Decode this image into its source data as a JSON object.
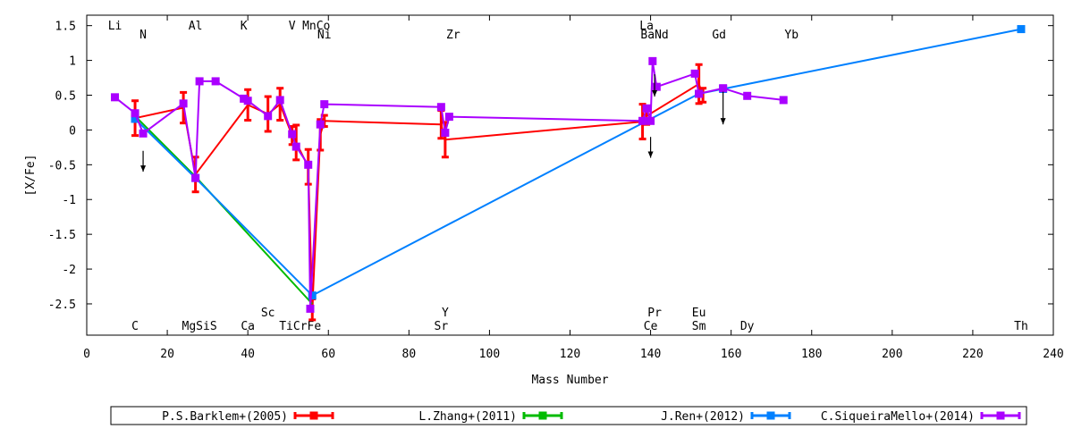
{
  "chart_data": {
    "type": "line",
    "title": "",
    "xlabel": "Mass Number",
    "ylabel": "[X/Fe]",
    "xlim": [
      0,
      240
    ],
    "ylim": [
      -2.95,
      1.65
    ],
    "xticks": [
      0,
      20,
      40,
      60,
      80,
      100,
      120,
      140,
      160,
      180,
      200,
      220,
      240
    ],
    "yticks": [
      1.5,
      1,
      0.5,
      0,
      -0.5,
      -1,
      -1.5,
      -2,
      -2.5
    ],
    "ytick_labels": [
      "1.5",
      "1",
      "0.5",
      "0",
      "-0.5",
      "-1",
      "-1.5",
      "-2",
      "-2.5"
    ],
    "grid": false,
    "legend_position": "bottom",
    "element_labels": [
      {
        "text": "Li",
        "x": 7,
        "row": "top1"
      },
      {
        "text": "N",
        "x": 14,
        "row": "top2"
      },
      {
        "text": "Al",
        "x": 27,
        "row": "top1"
      },
      {
        "text": "K",
        "x": 39,
        "row": "top1"
      },
      {
        "text": "V",
        "x": 51,
        "row": "top1"
      },
      {
        "text": "MnCo",
        "x": 57,
        "row": "top1"
      },
      {
        "text": "Ni",
        "x": 59,
        "row": "top2"
      },
      {
        "text": "Zr",
        "x": 91,
        "row": "top2"
      },
      {
        "text": "La",
        "x": 139,
        "row": "top1"
      },
      {
        "text": "BaNd",
        "x": 141,
        "row": "top2"
      },
      {
        "text": "Gd",
        "x": 157,
        "row": "top2"
      },
      {
        "text": "Yb",
        "x": 175,
        "row": "top2"
      },
      {
        "text": "Sc",
        "x": 45,
        "row": "bot1"
      },
      {
        "text": "Y",
        "x": 89,
        "row": "bot1"
      },
      {
        "text": "Pr",
        "x": 141,
        "row": "bot1"
      },
      {
        "text": "Eu",
        "x": 152,
        "row": "bot1"
      },
      {
        "text": "C",
        "x": 12,
        "row": "bot2"
      },
      {
        "text": "MgSiS",
        "x": 28,
        "row": "bot2"
      },
      {
        "text": "Ca",
        "x": 40,
        "row": "bot2"
      },
      {
        "text": "TiCrFe",
        "x": 53,
        "row": "bot2"
      },
      {
        "text": "Sr",
        "x": 88,
        "row": "bot2"
      },
      {
        "text": "Ce",
        "x": 140,
        "row": "bot2"
      },
      {
        "text": "Sm",
        "x": 152,
        "row": "bot2"
      },
      {
        "text": "Dy",
        "x": 164,
        "row": "bot2"
      },
      {
        "text": "Th",
        "x": 232,
        "row": "bot2"
      }
    ],
    "series": [
      {
        "name": "P.S.Barklem+(2005)",
        "color": "#ff0000",
        "marker": "errorbar",
        "points": [
          {
            "x": 12,
            "y": 0.17,
            "err": 0.25
          },
          {
            "x": 24,
            "y": 0.32,
            "err": 0.22
          },
          {
            "x": 27,
            "y": -0.64,
            "err": 0.25
          },
          {
            "x": 40,
            "y": 0.36,
            "err": 0.22
          },
          {
            "x": 45,
            "y": 0.23,
            "err": 0.25
          },
          {
            "x": 48,
            "y": 0.37,
            "err": 0.23
          },
          {
            "x": 51,
            "y": -0.08,
            "err": 0.13
          },
          {
            "x": 52,
            "y": -0.18,
            "err": 0.25
          },
          {
            "x": 55,
            "y": -0.53,
            "err": 0.25
          },
          {
            "x": 56,
            "y": -2.58,
            "err": 0.15
          },
          {
            "x": 58,
            "y": -0.07,
            "err": 0.22
          },
          {
            "x": 59,
            "y": 0.13,
            "err": 0.08
          },
          {
            "x": 88,
            "y": 0.08,
            "err": 0.2
          },
          {
            "x": 89,
            "y": -0.14,
            "err": 0.25
          },
          {
            "x": 138,
            "y": 0.12,
            "err": 0.25
          },
          {
            "x": 139,
            "y": 0.2,
            "err": 0.12
          },
          {
            "x": 152,
            "y": 0.66,
            "err": 0.28
          },
          {
            "x": 153,
            "y": 0.5,
            "err": 0.1
          }
        ]
      },
      {
        "name": "L.Zhang+(2011)",
        "color": "#00bb00",
        "marker": "errorbar",
        "points": [
          {
            "x": 12,
            "y": 0.2,
            "err": 0
          },
          {
            "x": 27,
            "y": -0.67,
            "err": 0
          },
          {
            "x": 56,
            "y": -2.5,
            "err": 0
          }
        ]
      },
      {
        "name": "J.Ren+(2012)",
        "color": "#0080ff",
        "marker": "square",
        "points": [
          {
            "x": 12,
            "y": 0.16,
            "err": 0
          },
          {
            "x": 27,
            "y": -0.69,
            "err": 0
          },
          {
            "x": 56,
            "y": -2.38,
            "err": 0
          },
          {
            "x": 152,
            "y": 0.52,
            "err": 0
          },
          {
            "x": 158,
            "y": 0.59,
            "err": 0
          },
          {
            "x": 232,
            "y": 1.45,
            "err": 0
          }
        ]
      },
      {
        "name": "C.SiqueiraMello+(2014)",
        "color": "#aa00ff",
        "marker": "square",
        "points": [
          {
            "x": 7,
            "y": 0.47,
            "err": 0
          },
          {
            "x": 12,
            "y": 0.24,
            "err": 0
          },
          {
            "x": 14,
            "y": -0.05,
            "err": 0
          },
          {
            "x": 24,
            "y": 0.38,
            "err": 0
          },
          {
            "x": 27,
            "y": -0.69,
            "err": 0
          },
          {
            "x": 28,
            "y": 0.7,
            "err": 0
          },
          {
            "x": 32,
            "y": 0.7,
            "err": 0
          },
          {
            "x": 39,
            "y": 0.45,
            "err": 0
          },
          {
            "x": 40,
            "y": 0.42,
            "err": 0
          },
          {
            "x": 45,
            "y": 0.2,
            "err": 0
          },
          {
            "x": 48,
            "y": 0.43,
            "err": 0
          },
          {
            "x": 51,
            "y": -0.06,
            "err": 0
          },
          {
            "x": 52,
            "y": -0.24,
            "err": 0
          },
          {
            "x": 55,
            "y": -0.5,
            "err": 0
          },
          {
            "x": 55.5,
            "y": -2.57,
            "err": 0
          },
          {
            "x": 58,
            "y": 0.08,
            "err": 0
          },
          {
            "x": 59,
            "y": 0.37,
            "err": 0
          },
          {
            "x": 88,
            "y": 0.33,
            "err": 0
          },
          {
            "x": 89,
            "y": -0.04,
            "err": 0
          },
          {
            "x": 90,
            "y": 0.19,
            "err": 0
          },
          {
            "x": 138,
            "y": 0.13,
            "err": 0
          },
          {
            "x": 139,
            "y": 0.31,
            "err": 0
          },
          {
            "x": 140,
            "y": 0.13,
            "err": 0
          },
          {
            "x": 140.5,
            "y": 0.99,
            "err": 0
          },
          {
            "x": 141.5,
            "y": 0.62,
            "err": 0
          },
          {
            "x": 151,
            "y": 0.81,
            "err": 0
          },
          {
            "x": 152,
            "y": 0.52,
            "err": 0
          },
          {
            "x": 158,
            "y": 0.6,
            "err": 0
          },
          {
            "x": 164,
            "y": 0.49,
            "err": 0
          },
          {
            "x": 173,
            "y": 0.43,
            "err": 0
          }
        ]
      }
    ],
    "upper_limit_arrows": [
      {
        "x": 14,
        "y_from": -0.3,
        "y_to": -0.6
      },
      {
        "x": 140,
        "y_from": -0.1,
        "y_to": -0.4
      },
      {
        "x": 141,
        "y_from": 0.8,
        "y_to": 0.48
      },
      {
        "x": 158,
        "y_from": 0.55,
        "y_to": 0.08
      }
    ]
  }
}
